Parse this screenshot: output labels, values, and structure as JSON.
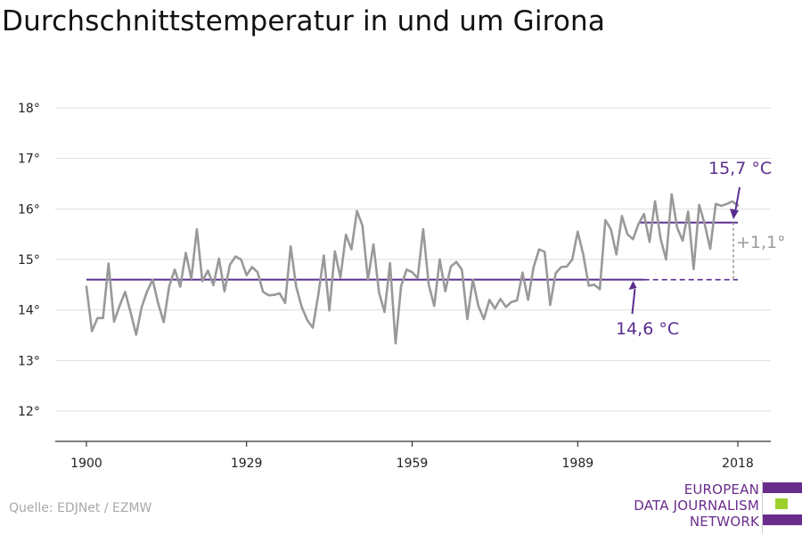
{
  "title": "Durchschnittstemperatur in und um Girona",
  "source": "Quelle: EDJNet / EZMW",
  "logo": {
    "lines": [
      "EUROPEAN",
      "DATA JOURNALISM",
      "NETWORK"
    ],
    "colors": {
      "purple": "#6a2c8a",
      "green": "#9bd12a"
    }
  },
  "colors": {
    "line": "#999999",
    "accent": "#5b2d8e",
    "grid": "#dddddd",
    "axis": "#333333",
    "delta": "#999999"
  },
  "chart_data": {
    "type": "line",
    "title": "Durchschnittstemperatur in und um Girona",
    "xlabel": "",
    "ylabel": "",
    "xlim": [
      1900,
      2018
    ],
    "ylim": [
      11.6,
      18.0
    ],
    "xticks": [
      {
        "value": 1900,
        "label": "1900"
      },
      {
        "value": 1929,
        "label": "1929"
      },
      {
        "value": 1959,
        "label": "1959"
      },
      {
        "value": 1989,
        "label": "1989"
      },
      {
        "value": 2018,
        "label": "2018"
      }
    ],
    "yticks": [
      {
        "value": 12,
        "label": "12°"
      },
      {
        "value": 13,
        "label": "13°"
      },
      {
        "value": 14,
        "label": "14°"
      },
      {
        "value": 15,
        "label": "15°"
      },
      {
        "value": 16,
        "label": "16°"
      },
      {
        "value": 17,
        "label": "17°"
      },
      {
        "value": 18,
        "label": "18°"
      }
    ],
    "grid": true,
    "series": [
      {
        "x_start": 1900,
        "x_step": 1,
        "values": [
          14.46,
          13.58,
          13.84,
          13.84,
          14.92,
          13.77,
          14.08,
          14.36,
          13.95,
          13.51,
          14.05,
          14.37,
          14.6,
          14.13,
          13.76,
          14.47,
          14.8,
          14.46,
          15.13,
          14.62,
          15.6,
          14.57,
          14.78,
          14.49,
          15.02,
          14.37,
          14.9,
          15.06,
          15.0,
          14.69,
          14.85,
          14.75,
          14.36,
          14.29,
          14.3,
          14.33,
          14.14,
          15.26,
          14.46,
          14.06,
          13.8,
          13.65,
          14.3,
          15.08,
          13.99,
          15.16,
          14.64,
          15.49,
          15.2,
          15.96,
          15.67,
          14.6,
          15.3,
          14.35,
          13.96,
          14.93,
          13.34,
          14.47,
          14.8,
          14.75,
          14.63,
          15.6,
          14.5,
          14.08,
          15.0,
          14.37,
          14.86,
          14.95,
          14.8,
          13.82,
          14.6,
          14.08,
          13.82,
          14.2,
          14.03,
          14.22,
          14.06,
          14.16,
          14.19,
          14.74,
          14.2,
          14.85,
          15.2,
          15.15,
          14.1,
          14.73,
          14.85,
          14.86,
          15.0,
          15.55,
          15.1,
          14.48,
          14.5,
          14.41,
          15.78,
          15.6,
          15.1,
          15.86,
          15.5,
          15.4,
          15.7,
          15.9,
          15.35,
          16.15,
          15.41,
          15.0,
          16.29,
          15.63,
          15.37,
          15.95,
          14.81,
          16.08,
          15.7,
          15.21,
          16.1,
          16.06,
          16.1,
          16.15,
          16.07
        ]
      }
    ],
    "reference_lines": [
      {
        "y": 14.6,
        "label": "14,6 °C",
        "x_solid": [
          1900,
          2001
        ],
        "x_dashed": [
          2001,
          2018
        ]
      },
      {
        "y": 15.73,
        "label": "15,7 °C",
        "x_solid": [
          2000,
          2018
        ]
      }
    ],
    "delta": {
      "label": "+1,1°",
      "x": 2018,
      "from": 14.6,
      "to": 15.73
    }
  }
}
